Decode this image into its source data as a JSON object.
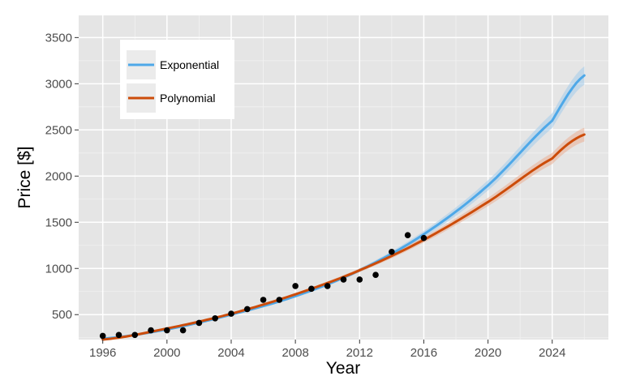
{
  "chart_data": {
    "type": "scatter",
    "title": "",
    "xlabel": "Year",
    "ylabel": "Price [$]",
    "xlim": [
      1994.5,
      2027.5
    ],
    "ylim": [
      230,
      3740
    ],
    "x_ticks": [
      1996,
      2000,
      2004,
      2008,
      2012,
      2016,
      2020,
      2024
    ],
    "x_tick_labels": [
      "1996",
      "2000",
      "2004",
      "2008",
      "2012",
      "2016",
      "2020",
      "2024"
    ],
    "y_ticks": [
      500,
      1000,
      1500,
      2000,
      2500,
      3000,
      3500
    ],
    "y_tick_labels": [
      "500",
      "1000",
      "1500",
      "2000",
      "2500",
      "3000",
      "3500"
    ],
    "grid": true,
    "legend_position": "top-left",
    "points": {
      "x": [
        1996,
        1997,
        1998,
        1999,
        2000,
        2001,
        2002,
        2003,
        2004,
        2005,
        2006,
        2007,
        2008,
        2009,
        2010,
        2011,
        2012,
        2013,
        2014,
        2015,
        2016
      ],
      "y": [
        270,
        280,
        280,
        330,
        330,
        330,
        410,
        460,
        510,
        560,
        660,
        660,
        810,
        780,
        810,
        880,
        880,
        930,
        1180,
        1360,
        1330
      ],
      "color": "#000000"
    },
    "series": [
      {
        "name": "Exponential",
        "color": "#4ea8e8",
        "ribbon_color": "#a8cdea",
        "x": [
          1996,
          2000,
          2004,
          2008,
          2012,
          2016,
          2020,
          2024,
          2026
        ],
        "y": [
          240,
          340,
          500,
          700,
          980,
          1370,
          1900,
          2600,
          3090
        ],
        "ribbon_half_width": [
          10,
          10,
          10,
          15,
          20,
          35,
          55,
          80,
          100
        ]
      },
      {
        "name": "Polynomial",
        "color": "#cc4c0a",
        "ribbon_color": "#e9b39a",
        "x": [
          1996,
          2000,
          2004,
          2008,
          2012,
          2016,
          2020,
          2024,
          2026
        ],
        "y": [
          230,
          350,
          510,
          720,
          980,
          1310,
          1720,
          2190,
          2450
        ],
        "ribbon_half_width": [
          10,
          10,
          10,
          15,
          20,
          30,
          45,
          60,
          75
        ]
      }
    ]
  },
  "colors": {
    "panel_background": "#e5e5e5",
    "grid_major": "#ffffff",
    "legend_background": "#ffffff",
    "legend_key_background": "#ebebeb",
    "tick_text": "#4d4d4d"
  }
}
